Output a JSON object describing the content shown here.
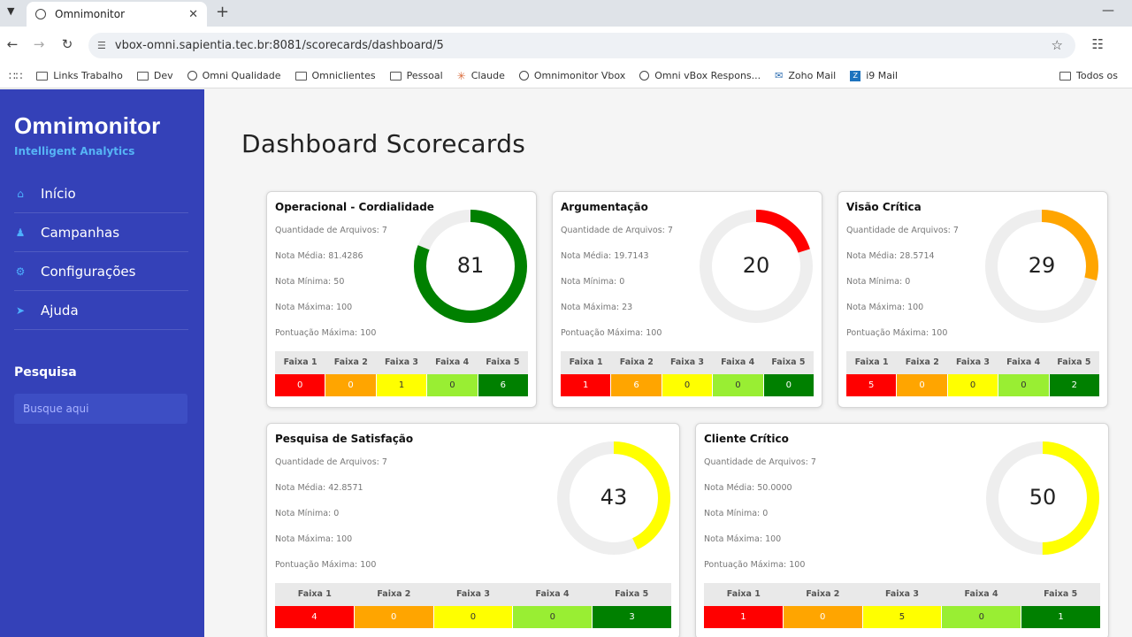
{
  "browser": {
    "tab_title": "Omnimonitor",
    "url": "vbox-omni.sapientia.tec.br:8081/scorecards/dashboard/5",
    "bookmarks": [
      {
        "label": "Links Trabalho",
        "icon": "folder-icon"
      },
      {
        "label": "Dev",
        "icon": "folder-icon"
      },
      {
        "label": "Omni Qualidade",
        "icon": "globe-icon"
      },
      {
        "label": "Omniclientes",
        "icon": "folder-icon"
      },
      {
        "label": "Pessoal",
        "icon": "folder-icon"
      },
      {
        "label": "Claude",
        "icon": "claude-icon"
      },
      {
        "label": "Omnimonitor Vbox",
        "icon": "globe-icon"
      },
      {
        "label": "Omni vBox Respons...",
        "icon": "globe-icon"
      },
      {
        "label": "Zoho Mail",
        "icon": "mail-icon"
      },
      {
        "label": "i9 Mail",
        "icon": "zmail-icon"
      }
    ],
    "all_bookmarks_label": "Todos os"
  },
  "sidebar": {
    "brand": "Omnimonitor",
    "tagline": "Intelligent Analytics",
    "items": [
      {
        "label": "Início",
        "icon": "home-icon"
      },
      {
        "label": "Campanhas",
        "icon": "user-icon"
      },
      {
        "label": "Configurações",
        "icon": "cogs-icon"
      },
      {
        "label": "Ajuda",
        "icon": "paper-plane-icon"
      }
    ],
    "search_title": "Pesquisa",
    "search_placeholder": "Busque aqui"
  },
  "main": {
    "title": "Dashboard Scorecards"
  },
  "labels": {
    "qtd": "Quantidade de Arquivos:",
    "media": "Nota Média:",
    "minima": "Nota Mínima:",
    "maxima": "Nota Máxima:",
    "pontuacao": "Pontuação Máxima:",
    "bands": [
      "Faixa 1",
      "Faixa 2",
      "Faixa 3",
      "Faixa 4",
      "Faixa 5"
    ]
  },
  "colors": {
    "band1": "#ff0000",
    "band2": "#ffa500",
    "band3": "#ffff00",
    "band4": "#99ee33",
    "band5": "#008000",
    "gauge_track": "#eeeeee",
    "sidebar": "#3441b8",
    "accent": "#56b4f5"
  },
  "scorecards": [
    {
      "title": "Operacional - Cordialidade",
      "qtd": "7",
      "media": "81.4286",
      "minima": "50",
      "maxima": "100",
      "pontuacao": "100",
      "score": 81,
      "gauge_color": "#008000",
      "bands": [
        "0",
        "0",
        "1",
        "0",
        "6"
      ]
    },
    {
      "title": "Argumentação",
      "qtd": "7",
      "media": "19.7143",
      "minima": "0",
      "maxima": "23",
      "pontuacao": "100",
      "score": 20,
      "gauge_color": "#ff0000",
      "bands": [
        "1",
        "6",
        "0",
        "0",
        "0"
      ]
    },
    {
      "title": "Visão Crítica",
      "qtd": "7",
      "media": "28.5714",
      "minima": "0",
      "maxima": "100",
      "pontuacao": "100",
      "score": 29,
      "gauge_color": "#ffa500",
      "bands": [
        "5",
        "0",
        "0",
        "0",
        "2"
      ]
    },
    {
      "title": "Pesquisa de Satisfação",
      "qtd": "7",
      "media": "42.8571",
      "minima": "0",
      "maxima": "100",
      "pontuacao": "100",
      "score": 43,
      "gauge_color": "#ffff00",
      "bands": [
        "4",
        "0",
        "0",
        "0",
        "3"
      ]
    },
    {
      "title": "Cliente Crítico",
      "qtd": "7",
      "media": "50.0000",
      "minima": "0",
      "maxima": "100",
      "pontuacao": "100",
      "score": 50,
      "gauge_color": "#ffff00",
      "bands": [
        "1",
        "0",
        "5",
        "0",
        "1"
      ]
    }
  ]
}
